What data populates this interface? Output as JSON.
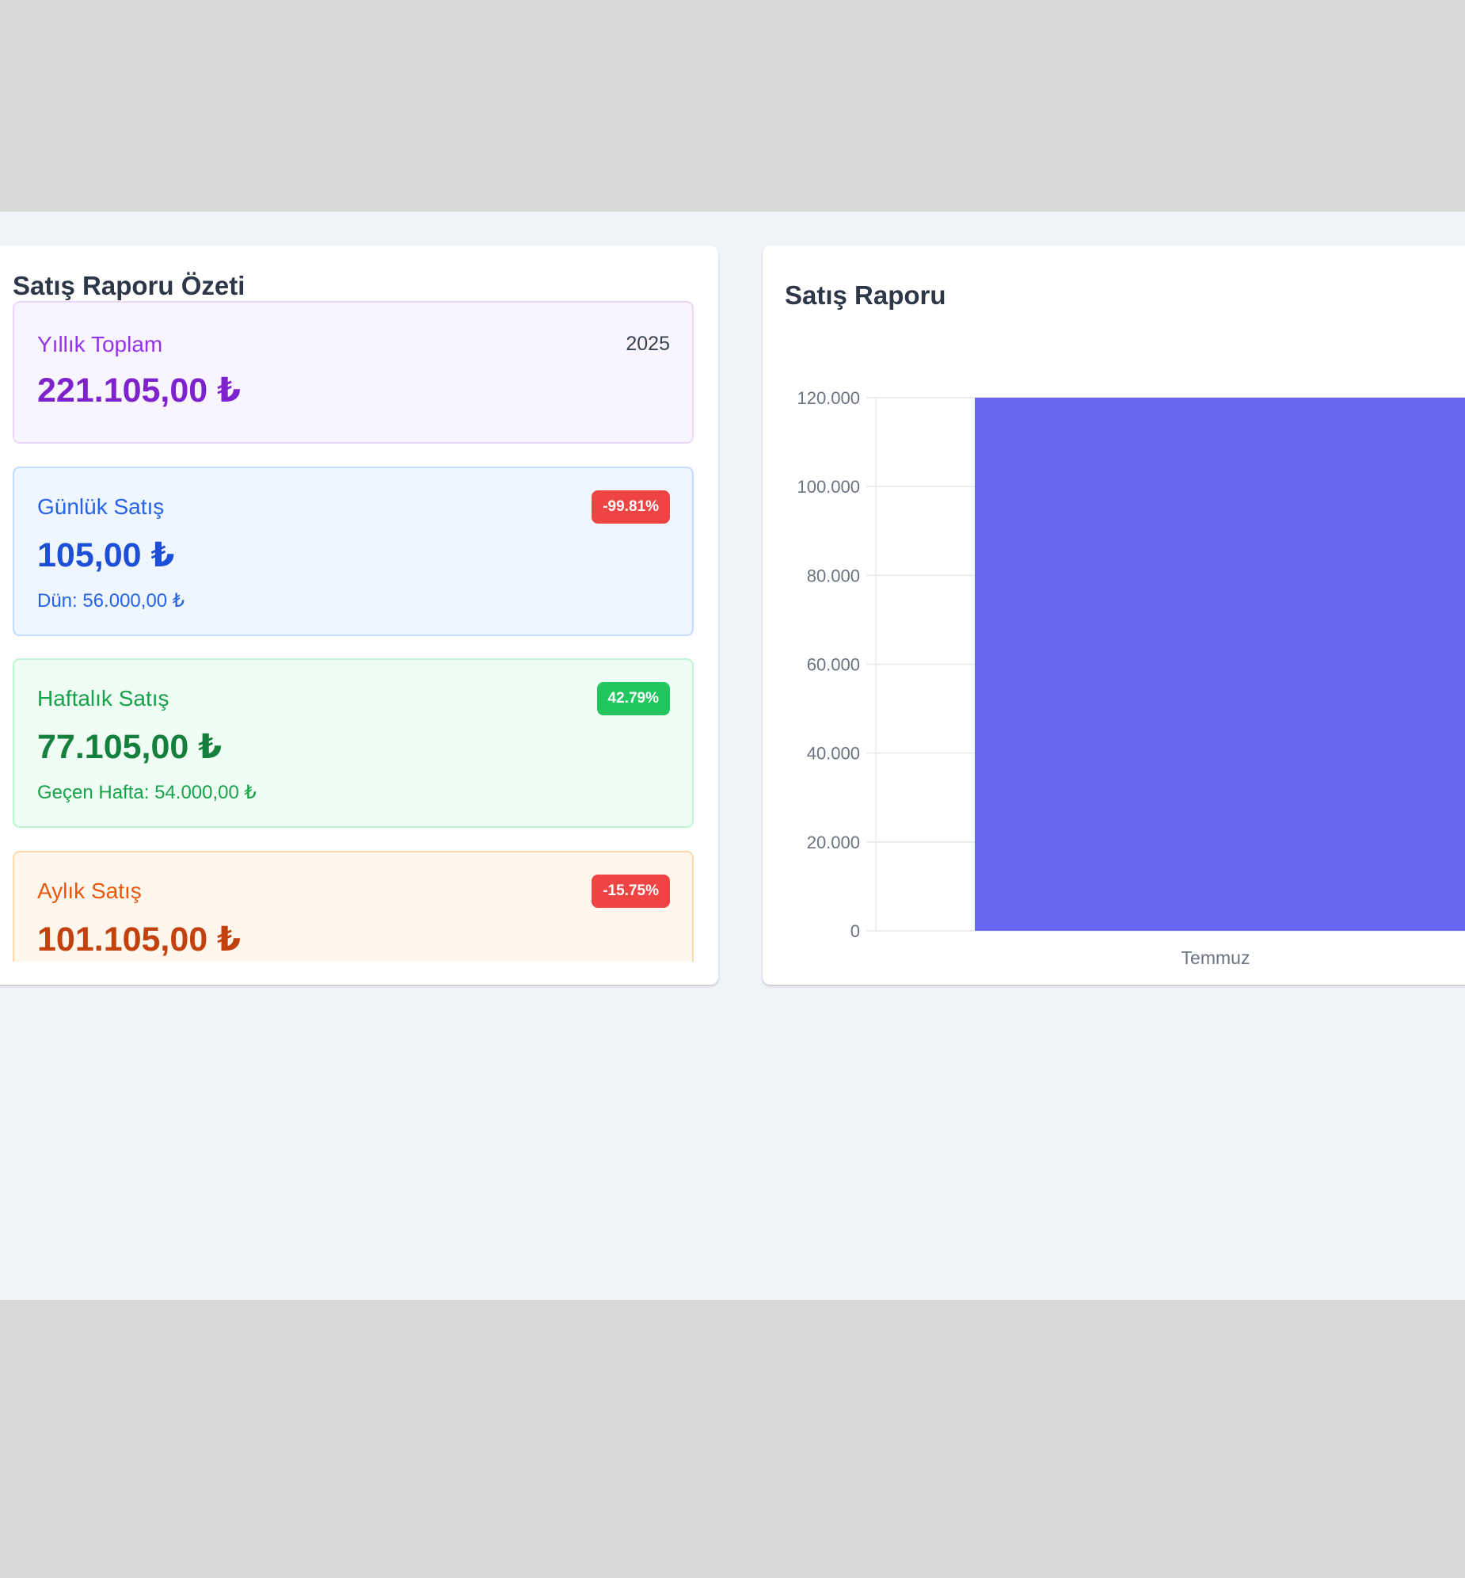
{
  "summary": {
    "title": "Satış Raporu Özeti",
    "yearly": {
      "label": "Yıllık Toplam",
      "year": "2025",
      "value": "221.105,00 ₺"
    },
    "daily": {
      "label": "Günlük Satış",
      "badge": "-99.81%",
      "value": "105,00 ₺",
      "sub": "Dün: 56.000,00 ₺"
    },
    "weekly": {
      "label": "Haftalık Satış",
      "badge": "42.79%",
      "value": "77.105,00 ₺",
      "sub": "Geçen Hafta: 54.000,00 ₺"
    },
    "monthly": {
      "label": "Aylık Satış",
      "badge": "-15.75%",
      "value": "101.105,00 ₺"
    }
  },
  "colors": {
    "badge_negative": "#ef4444",
    "badge_positive": "#22c55e",
    "bar": "#6767f1"
  },
  "chart_data": {
    "type": "bar",
    "title": "Satış Raporu",
    "categories": [
      "Temmuz"
    ],
    "values": [
      120000
    ],
    "ylim": [
      0,
      120000
    ],
    "yticks": [
      "0",
      "20.000",
      "40.000",
      "60.000",
      "80.000",
      "100.000",
      "120.000"
    ],
    "grid": true
  }
}
